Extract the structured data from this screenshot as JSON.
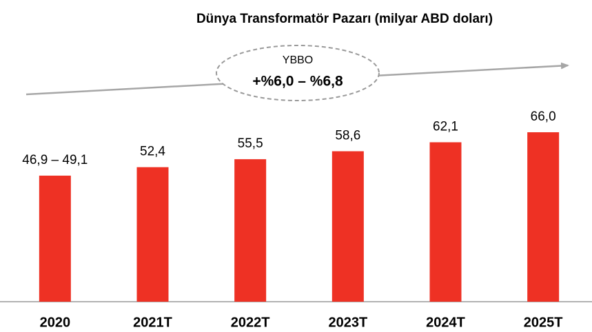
{
  "chart_data": {
    "type": "bar",
    "title": "Dünya Transformatör Pazarı (milyar ABD doları)",
    "categories": [
      "2020",
      "2021T",
      "2022T",
      "2023T",
      "2024T",
      "2025T"
    ],
    "values": [
      49.1,
      52.4,
      55.5,
      58.6,
      62.1,
      66.0
    ],
    "value_labels": [
      "46,9 – 49,1",
      "52,4",
      "55,5",
      "58,6",
      "62,1",
      "66,0"
    ],
    "color": "#ee3124",
    "annotations": {
      "label": "YBBO",
      "text": "+%6,0 – %6,8"
    }
  }
}
